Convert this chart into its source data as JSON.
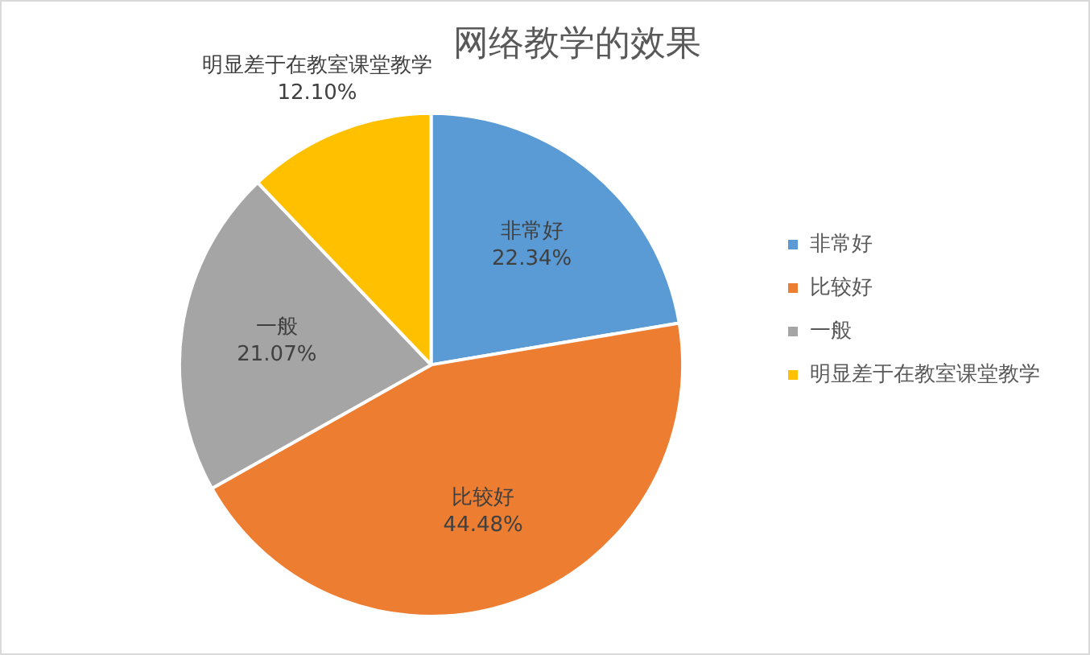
{
  "chart_data": {
    "type": "pie",
    "title": "网络教学的效果",
    "categories": [
      "非常好",
      "比较好",
      "一般",
      "明显差于在教室课堂教学"
    ],
    "values": [
      22.34,
      44.48,
      21.07,
      12.1
    ],
    "value_labels": [
      "22.34%",
      "44.48%",
      "21.07%",
      "12.10%"
    ],
    "colors": [
      "#5b9bd5",
      "#ed7d31",
      "#a5a5a5",
      "#ffc000"
    ],
    "legend": "right"
  }
}
